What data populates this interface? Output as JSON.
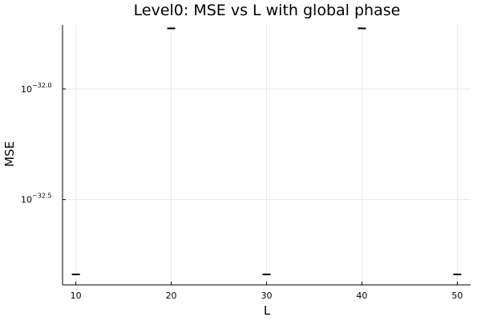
{
  "chart_data": {
    "type": "scatter",
    "title": "Level0: MSE vs L with global phase",
    "xlabel": "L",
    "ylabel": "MSE",
    "x_ticks": [
      10,
      20,
      30,
      40,
      50
    ],
    "xlim": [
      8.6,
      51.4
    ],
    "y_scale": "log10",
    "y_ticks": [
      {
        "value": 1e-32,
        "base": "10",
        "exponent": "−32.0"
      },
      {
        "value": 3.162e-33,
        "base": "10",
        "exponent": "−32.5"
      }
    ],
    "ylim": [
      1.3e-33,
      1.95e-32
    ],
    "grid": true,
    "legend": "none",
    "marker": "hline",
    "series": [
      {
        "x": [
          10,
          20,
          30,
          40,
          50
        ],
        "y": [
          1.45e-33,
          1.88e-32,
          1.45e-33,
          1.88e-32,
          1.45e-33
        ]
      }
    ],
    "colors": {
      "axis": "#000000",
      "grid": "#e8e8e8",
      "marker": "#000000"
    }
  }
}
